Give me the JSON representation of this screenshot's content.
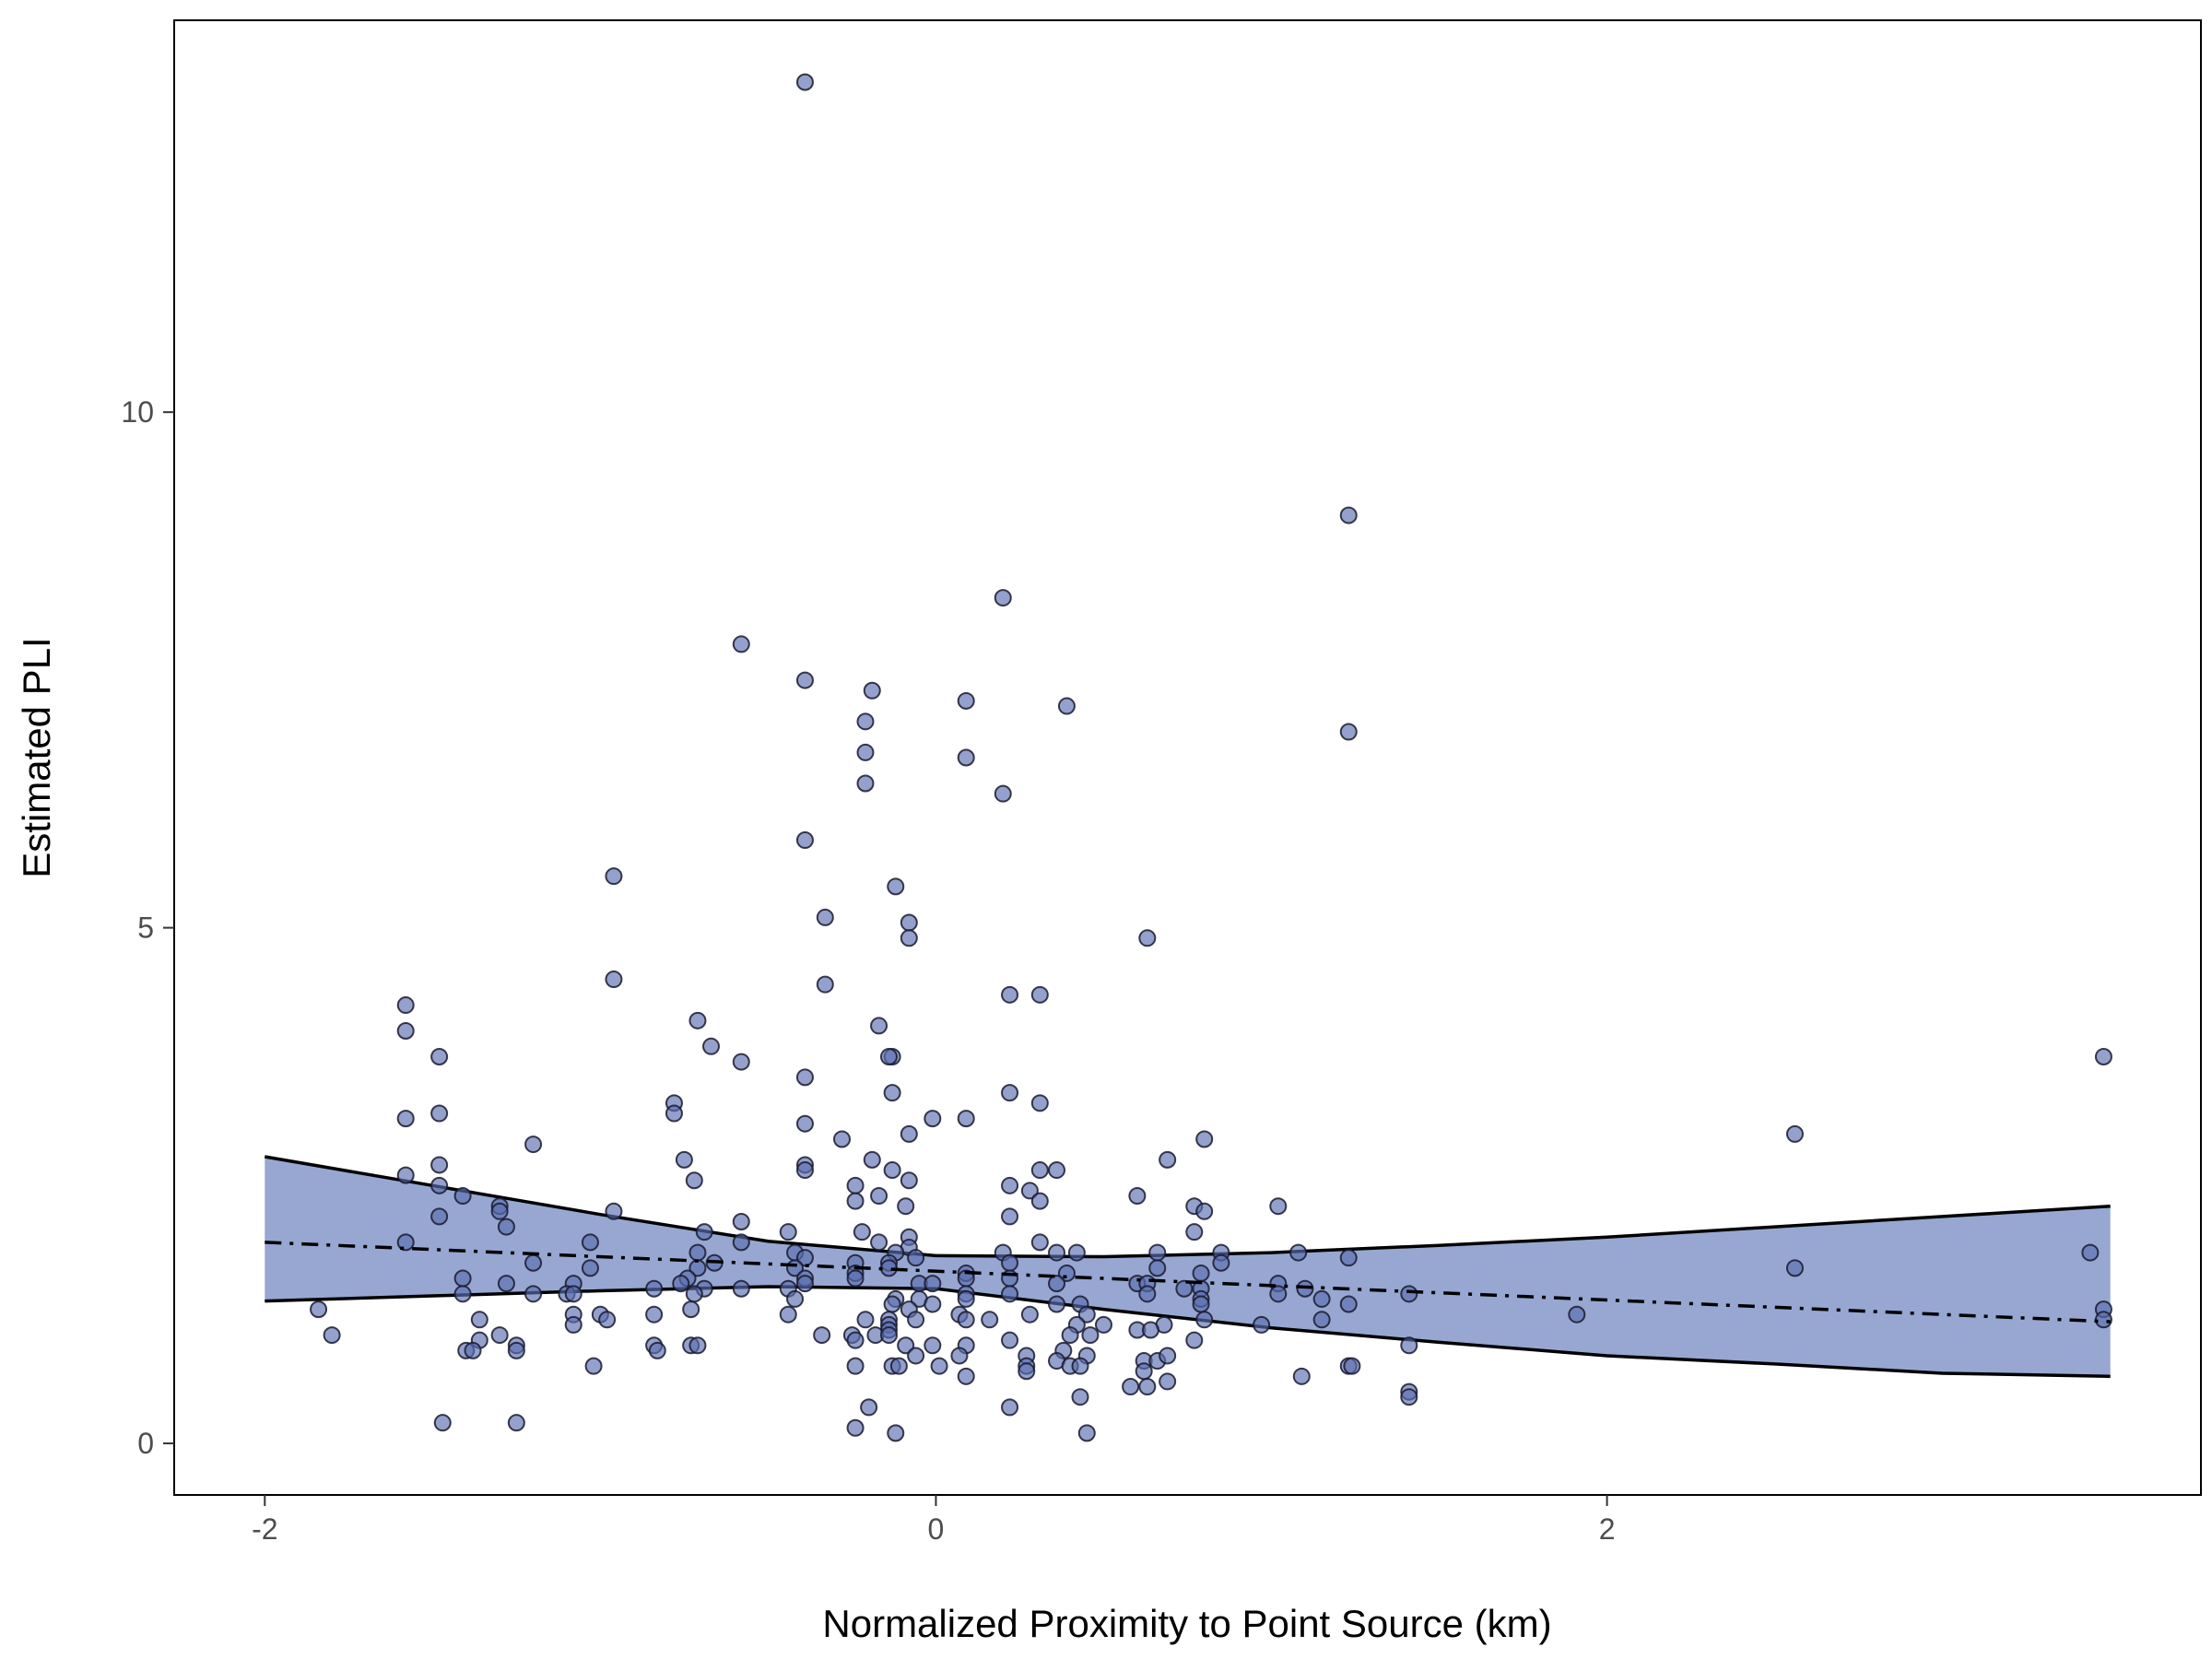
{
  "chart_data": {
    "type": "scatter",
    "title": "",
    "xlabel": "Normalized Proximity to Point Source (km)",
    "ylabel": "Estimated PLI",
    "xlim": [
      -2.27,
      3.77
    ],
    "ylim": [
      -0.5,
      13.8
    ],
    "xticks": [
      -2,
      0,
      2
    ],
    "xtick_labels": [
      "-2",
      "0",
      "2"
    ],
    "yticks": [
      0,
      5,
      10
    ],
    "ytick_labels": [
      "0",
      "5",
      "10"
    ],
    "grid": false,
    "legend": "none",
    "colors": {
      "point_fill": "#5a6fb0",
      "point_stroke": "#1a1a2e",
      "band_fill": "#97a7d2",
      "band_line": "#000000",
      "fit_line": "#000000",
      "frame": "#000000"
    },
    "points": [
      [
        -0.39,
        13.2
      ],
      [
        1.23,
        9.0
      ],
      [
        0.2,
        8.2
      ],
      [
        -0.58,
        7.75
      ],
      [
        -0.39,
        7.4
      ],
      [
        -0.19,
        7.3
      ],
      [
        0.09,
        7.2
      ],
      [
        0.39,
        7.15
      ],
      [
        -0.21,
        7.0
      ],
      [
        1.23,
        6.9
      ],
      [
        -0.21,
        6.7
      ],
      [
        0.09,
        6.65
      ],
      [
        -0.21,
        6.4
      ],
      [
        0.2,
        6.3
      ],
      [
        -0.39,
        5.85
      ],
      [
        -0.96,
        5.5
      ],
      [
        -0.12,
        5.4
      ],
      [
        -0.08,
        5.05
      ],
      [
        -0.33,
        5.1
      ],
      [
        -0.08,
        4.9
      ],
      [
        0.63,
        4.9
      ],
      [
        -0.96,
        4.5
      ],
      [
        -0.33,
        4.45
      ],
      [
        0.31,
        4.35
      ],
      [
        0.22,
        4.35
      ],
      [
        -1.58,
        4.25
      ],
      [
        -0.17,
        4.05
      ],
      [
        -0.71,
        4.1
      ],
      [
        -1.58,
        4.0
      ],
      [
        -0.67,
        3.85
      ],
      [
        -0.13,
        3.75
      ],
      [
        -0.14,
        3.75
      ],
      [
        -0.58,
        3.7
      ],
      [
        -1.48,
        3.75
      ],
      [
        -0.39,
        3.55
      ],
      [
        3.48,
        3.75
      ],
      [
        -0.13,
        3.4
      ],
      [
        0.22,
        3.4
      ],
      [
        -0.78,
        3.3
      ],
      [
        0.31,
        3.3
      ],
      [
        -0.78,
        3.2
      ],
      [
        -1.48,
        3.2
      ],
      [
        -0.01,
        3.15
      ],
      [
        0.09,
        3.15
      ],
      [
        -1.58,
        3.15
      ],
      [
        -0.39,
        3.1
      ],
      [
        -0.08,
        3.0
      ],
      [
        2.56,
        3.0
      ],
      [
        -0.28,
        2.95
      ],
      [
        0.8,
        2.95
      ],
      [
        -1.2,
        2.9
      ],
      [
        -0.75,
        2.75
      ],
      [
        -0.19,
        2.75
      ],
      [
        0.69,
        2.75
      ],
      [
        -0.39,
        2.7
      ],
      [
        0.31,
        2.65
      ],
      [
        0.36,
        2.65
      ],
      [
        -0.39,
        2.65
      ],
      [
        -1.48,
        2.7
      ],
      [
        -0.13,
        2.65
      ],
      [
        -1.58,
        2.6
      ],
      [
        -0.72,
        2.55
      ],
      [
        -0.08,
        2.55
      ],
      [
        -0.24,
        2.5
      ],
      [
        0.22,
        2.5
      ],
      [
        0.28,
        2.45
      ],
      [
        -1.48,
        2.5
      ],
      [
        -1.41,
        2.4
      ],
      [
        -0.24,
        2.35
      ],
      [
        -0.17,
        2.4
      ],
      [
        0.31,
        2.35
      ],
      [
        -0.09,
        2.3
      ],
      [
        0.6,
        2.4
      ],
      [
        0.77,
        2.3
      ],
      [
        1.02,
        2.3
      ],
      [
        -1.3,
        2.3
      ],
      [
        -1.3,
        2.25
      ],
      [
        0.8,
        2.25
      ],
      [
        -0.96,
        2.25
      ],
      [
        0.22,
        2.2
      ],
      [
        -1.48,
        2.2
      ],
      [
        -0.58,
        2.15
      ],
      [
        -1.28,
        2.1
      ],
      [
        -0.44,
        2.05
      ],
      [
        -0.69,
        2.05
      ],
      [
        -0.22,
        2.05
      ],
      [
        -0.08,
        2.0
      ],
      [
        0.77,
        2.05
      ],
      [
        -0.17,
        1.95
      ],
      [
        -1.03,
        1.95
      ],
      [
        -1.58,
        1.95
      ],
      [
        0.31,
        1.95
      ],
      [
        -0.58,
        1.95
      ],
      [
        -0.08,
        1.9
      ],
      [
        -0.71,
        1.85
      ],
      [
        0.2,
        1.85
      ],
      [
        0.36,
        1.85
      ],
      [
        0.42,
        1.85
      ],
      [
        0.66,
        1.85
      ],
      [
        0.85,
        1.85
      ],
      [
        1.08,
        1.85
      ],
      [
        3.44,
        1.85
      ],
      [
        -0.12,
        1.85
      ],
      [
        -0.42,
        1.85
      ],
      [
        -0.39,
        1.8
      ],
      [
        1.23,
        1.8
      ],
      [
        -0.24,
        1.75
      ],
      [
        -0.14,
        1.75
      ],
      [
        -1.2,
        1.75
      ],
      [
        -0.06,
        1.8
      ],
      [
        0.22,
        1.75
      ],
      [
        -0.66,
        1.75
      ],
      [
        -0.71,
        1.7
      ],
      [
        -1.03,
        1.7
      ],
      [
        0.85,
        1.75
      ],
      [
        2.56,
        1.7
      ],
      [
        0.66,
        1.7
      ],
      [
        0.39,
        1.65
      ],
      [
        -0.24,
        1.65
      ],
      [
        -0.42,
        1.7
      ],
      [
        -0.14,
        1.7
      ],
      [
        0.09,
        1.65
      ],
      [
        0.79,
        1.65
      ],
      [
        -1.41,
        1.6
      ],
      [
        -0.39,
        1.6
      ],
      [
        -0.74,
        1.6
      ],
      [
        -0.24,
        1.6
      ],
      [
        0.22,
        1.6
      ],
      [
        -0.39,
        1.55
      ],
      [
        -0.05,
        1.55
      ],
      [
        -0.01,
        1.55
      ],
      [
        0.09,
        1.6
      ],
      [
        0.36,
        1.55
      ],
      [
        -0.76,
        1.55
      ],
      [
        1.02,
        1.55
      ],
      [
        -1.28,
        1.55
      ],
      [
        -1.08,
        1.55
      ],
      [
        0.6,
        1.55
      ],
      [
        0.63,
        1.55
      ],
      [
        -0.58,
        1.5
      ],
      [
        0.74,
        1.5
      ],
      [
        1.1,
        1.5
      ],
      [
        -0.69,
        1.5
      ],
      [
        0.79,
        1.5
      ],
      [
        -0.44,
        1.5
      ],
      [
        -0.84,
        1.5
      ],
      [
        -1.2,
        1.45
      ],
      [
        -1.1,
        1.45
      ],
      [
        -1.08,
        1.45
      ],
      [
        -0.72,
        1.45
      ],
      [
        -0.42,
        1.4
      ],
      [
        0.09,
        1.45
      ],
      [
        0.22,
        1.45
      ],
      [
        0.63,
        1.45
      ],
      [
        -1.41,
        1.45
      ],
      [
        -0.12,
        1.4
      ],
      [
        -0.05,
        1.4
      ],
      [
        0.09,
        1.4
      ],
      [
        0.79,
        1.4
      ],
      [
        1.02,
        1.45
      ],
      [
        1.15,
        1.4
      ],
      [
        1.41,
        1.45
      ],
      [
        -0.13,
        1.35
      ],
      [
        -0.01,
        1.35
      ],
      [
        0.36,
        1.35
      ],
      [
        0.43,
        1.35
      ],
      [
        0.79,
        1.35
      ],
      [
        1.23,
        1.35
      ],
      [
        -1.84,
        1.3
      ],
      [
        -0.08,
        1.3
      ],
      [
        -0.73,
        1.3
      ],
      [
        -0.44,
        1.25
      ],
      [
        0.45,
        1.25
      ],
      [
        1.91,
        1.25
      ],
      [
        3.48,
        1.3
      ],
      [
        -0.84,
        1.25
      ],
      [
        -1.08,
        1.25
      ],
      [
        -1.0,
        1.25
      ],
      [
        -0.98,
        1.2
      ],
      [
        -1.36,
        1.2
      ],
      [
        -0.21,
        1.2
      ],
      [
        -0.14,
        1.2
      ],
      [
        -0.06,
        1.2
      ],
      [
        0.07,
        1.25
      ],
      [
        0.28,
        1.25
      ],
      [
        0.16,
        1.2
      ],
      [
        -0.14,
        1.15
      ],
      [
        -1.08,
        1.15
      ],
      [
        -0.14,
        1.1
      ],
      [
        0.09,
        1.2
      ],
      [
        0.42,
        1.15
      ],
      [
        0.5,
        1.15
      ],
      [
        0.68,
        1.15
      ],
      [
        0.8,
        1.2
      ],
      [
        0.97,
        1.15
      ],
      [
        1.15,
        1.2
      ],
      [
        3.48,
        1.2
      ],
      [
        -1.8,
        1.05
      ],
      [
        -1.3,
        1.05
      ],
      [
        -1.36,
        1.0
      ],
      [
        -0.34,
        1.05
      ],
      [
        -0.25,
        1.05
      ],
      [
        -0.24,
        1.0
      ],
      [
        -0.18,
        1.05
      ],
      [
        -0.14,
        1.05
      ],
      [
        0.22,
        1.0
      ],
      [
        0.4,
        1.05
      ],
      [
        0.46,
        1.05
      ],
      [
        0.6,
        1.1
      ],
      [
        0.64,
        1.1
      ],
      [
        0.77,
        1.0
      ],
      [
        1.41,
        0.95
      ],
      [
        -1.25,
        0.95
      ],
      [
        -0.84,
        0.95
      ],
      [
        -0.73,
        0.95
      ],
      [
        -0.71,
        0.95
      ],
      [
        -0.09,
        0.95
      ],
      [
        -0.01,
        0.95
      ],
      [
        0.09,
        0.95
      ],
      [
        0.38,
        0.9
      ],
      [
        -1.4,
        0.9
      ],
      [
        -1.38,
        0.9
      ],
      [
        -1.25,
        0.9
      ],
      [
        -0.83,
        0.9
      ],
      [
        -0.06,
        0.85
      ],
      [
        0.27,
        0.85
      ],
      [
        0.45,
        0.85
      ],
      [
        0.07,
        0.85
      ],
      [
        0.36,
        0.8
      ],
      [
        0.62,
        0.8
      ],
      [
        0.66,
        0.8
      ],
      [
        0.69,
        0.85
      ],
      [
        -1.02,
        0.75
      ],
      [
        -0.24,
        0.75
      ],
      [
        -0.13,
        0.75
      ],
      [
        -0.11,
        0.75
      ],
      [
        0.01,
        0.75
      ],
      [
        0.27,
        0.75
      ],
      [
        0.4,
        0.75
      ],
      [
        0.43,
        0.75
      ],
      [
        1.23,
        0.75
      ],
      [
        1.24,
        0.75
      ],
      [
        0.09,
        0.65
      ],
      [
        0.27,
        0.7
      ],
      [
        0.62,
        0.7
      ],
      [
        0.69,
        0.6
      ],
      [
        1.09,
        0.65
      ],
      [
        0.58,
        0.55
      ],
      [
        0.63,
        0.55
      ],
      [
        1.41,
        0.5
      ],
      [
        1.41,
        0.45
      ],
      [
        0.43,
        0.45
      ],
      [
        -0.2,
        0.35
      ],
      [
        0.22,
        0.35
      ],
      [
        -1.47,
        0.2
      ],
      [
        -1.25,
        0.2
      ],
      [
        -0.24,
        0.15
      ],
      [
        -0.12,
        0.1
      ],
      [
        0.45,
        0.1
      ]
    ],
    "ci_band": {
      "x": [
        -2.0,
        -1.5,
        -1.0,
        -0.5,
        0.0,
        0.5,
        1.0,
        1.5,
        2.0,
        2.5,
        3.0,
        3.5
      ],
      "upper": [
        2.78,
        2.5,
        2.22,
        1.96,
        1.82,
        1.81,
        1.85,
        1.92,
        2.0,
        2.1,
        2.2,
        2.3
      ],
      "lower": [
        1.38,
        1.43,
        1.48,
        1.52,
        1.5,
        1.3,
        1.12,
        0.98,
        0.85,
        0.77,
        0.68,
        0.65
      ]
    },
    "fit_line": {
      "x": [
        -2.0,
        3.5
      ],
      "y": [
        1.95,
        1.18
      ],
      "style": "dash-dot"
    }
  }
}
